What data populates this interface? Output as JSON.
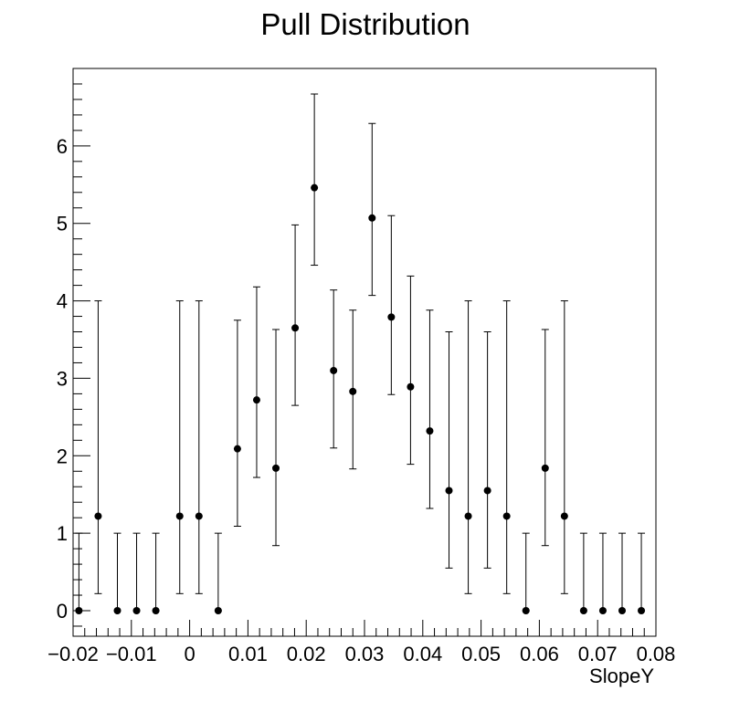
{
  "chart_data": {
    "type": "scatter",
    "title": "Pull Distribution",
    "xlabel": "SlopeY",
    "ylabel": "",
    "xlim": [
      -0.02,
      0.08
    ],
    "ylim": [
      -0.33,
      7.0
    ],
    "grid": false,
    "legend": "none",
    "x_ticks": [
      -0.02,
      -0.01,
      0,
      0.01,
      0.02,
      0.03,
      0.04,
      0.05,
      0.06,
      0.07,
      0.08
    ],
    "x_tick_labels": [
      "−0.02",
      "−0.01",
      "0",
      "0.01",
      "0.02",
      "0.03",
      "0.04",
      "0.05",
      "0.06",
      "0.07",
      "0.08"
    ],
    "y_ticks": [
      0,
      1,
      2,
      3,
      4,
      5,
      6
    ],
    "y_tick_labels": [
      "0",
      "1",
      "2",
      "3",
      "4",
      "5",
      "6"
    ],
    "series": [
      {
        "marker_color": "#000000",
        "points": [
          {
            "x": -0.019,
            "y": 0.0,
            "y_low": 0.0,
            "y_high": 1.0
          },
          {
            "x": -0.0157,
            "y": 1.22,
            "y_low": 0.22,
            "y_high": 4.0
          },
          {
            "x": -0.0124,
            "y": 0.0,
            "y_low": 0.0,
            "y_high": 1.0
          },
          {
            "x": -0.0091,
            "y": 0.0,
            "y_low": 0.0,
            "y_high": 1.0
          },
          {
            "x": -0.0058,
            "y": 0.0,
            "y_low": 0.0,
            "y_high": 1.0
          },
          {
            "x": -0.0017,
            "y": 1.22,
            "y_low": 0.22,
            "y_high": 4.0
          },
          {
            "x": 0.0016,
            "y": 1.22,
            "y_low": 0.22,
            "y_high": 4.0
          },
          {
            "x": 0.0049,
            "y": 0.0,
            "y_low": 0.0,
            "y_high": 1.0
          },
          {
            "x": 0.0082,
            "y": 2.09,
            "y_low": 1.09,
            "y_high": 3.75
          },
          {
            "x": 0.0115,
            "y": 2.72,
            "y_low": 1.72,
            "y_high": 4.18
          },
          {
            "x": 0.0148,
            "y": 1.84,
            "y_low": 0.84,
            "y_high": 3.63
          },
          {
            "x": 0.0181,
            "y": 3.65,
            "y_low": 2.65,
            "y_high": 4.98
          },
          {
            "x": 0.0214,
            "y": 5.46,
            "y_low": 4.46,
            "y_high": 6.67
          },
          {
            "x": 0.0247,
            "y": 3.1,
            "y_low": 2.1,
            "y_high": 4.14
          },
          {
            "x": 0.028,
            "y": 2.83,
            "y_low": 1.83,
            "y_high": 3.88
          },
          {
            "x": 0.0313,
            "y": 5.07,
            "y_low": 4.07,
            "y_high": 6.29
          },
          {
            "x": 0.0346,
            "y": 3.79,
            "y_low": 2.79,
            "y_high": 5.1
          },
          {
            "x": 0.0379,
            "y": 2.89,
            "y_low": 1.89,
            "y_high": 4.32
          },
          {
            "x": 0.0412,
            "y": 2.32,
            "y_low": 1.32,
            "y_high": 3.88
          },
          {
            "x": 0.0445,
            "y": 1.55,
            "y_low": 0.55,
            "y_high": 3.6
          },
          {
            "x": 0.0478,
            "y": 1.22,
            "y_low": 0.22,
            "y_high": 4.0
          },
          {
            "x": 0.0511,
            "y": 1.55,
            "y_low": 0.55,
            "y_high": 3.6
          },
          {
            "x": 0.0544,
            "y": 1.22,
            "y_low": 0.22,
            "y_high": 4.0
          },
          {
            "x": 0.0577,
            "y": 0.0,
            "y_low": 0.0,
            "y_high": 1.0
          },
          {
            "x": 0.061,
            "y": 1.84,
            "y_low": 0.84,
            "y_high": 3.63
          },
          {
            "x": 0.0643,
            "y": 1.22,
            "y_low": 0.22,
            "y_high": 4.0
          },
          {
            "x": 0.0676,
            "y": 0.0,
            "y_low": 0.0,
            "y_high": 1.0
          },
          {
            "x": 0.0709,
            "y": 0.0,
            "y_low": 0.0,
            "y_high": 1.0
          },
          {
            "x": 0.0742,
            "y": 0.0,
            "y_low": 0.0,
            "y_high": 1.0
          },
          {
            "x": 0.0775,
            "y": 0.0,
            "y_low": 0.0,
            "y_high": 1.0
          }
        ]
      }
    ]
  }
}
